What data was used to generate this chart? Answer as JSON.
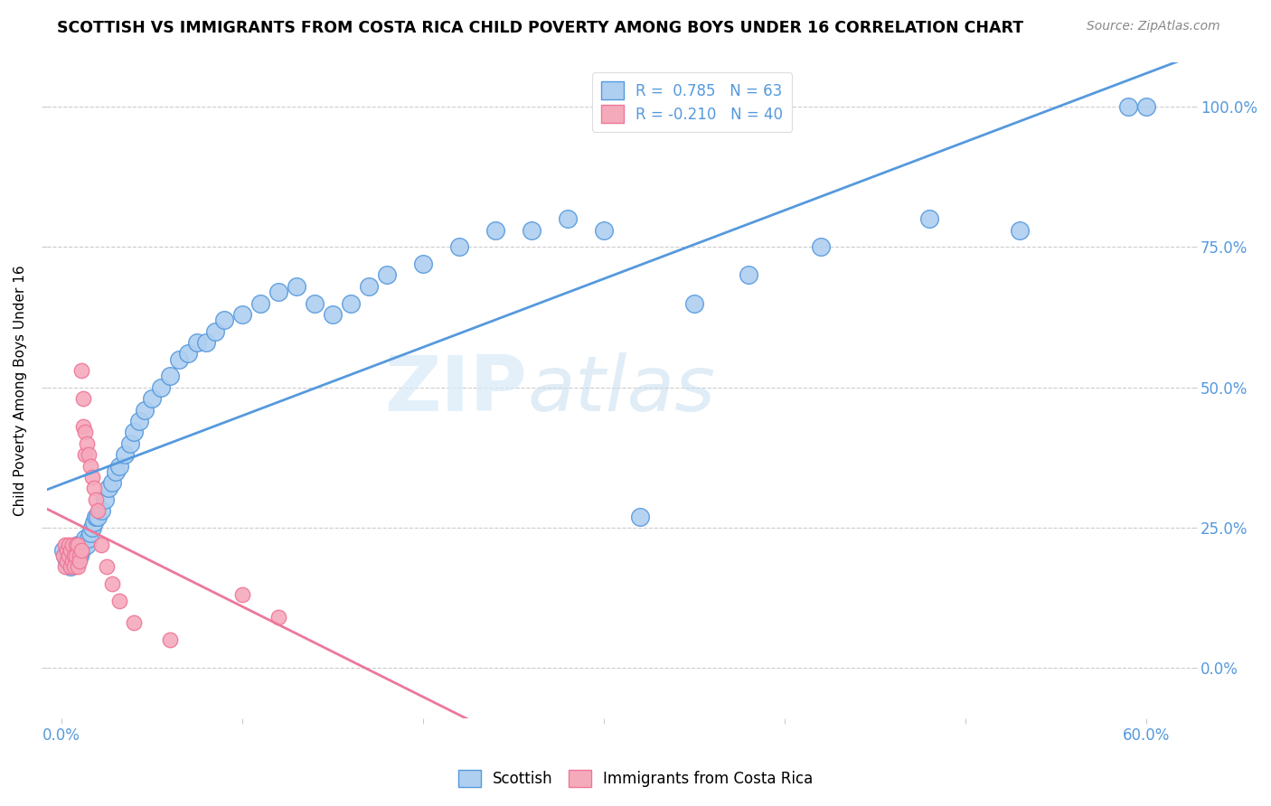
{
  "title": "SCOTTISH VS IMMIGRANTS FROM COSTA RICA CHILD POVERTY AMONG BOYS UNDER 16 CORRELATION CHART",
  "source": "Source: ZipAtlas.com",
  "ylabel": "Child Poverty Among Boys Under 16",
  "legend_r1": "R =  0.785   N = 63",
  "legend_r2": "R = -0.210   N = 40",
  "color_scottish": "#aecff0",
  "color_costarica": "#f5aabc",
  "line_color_scottish": "#5599dd",
  "line_color_costarica": "#ee7799",
  "watermark_zip": "ZIP",
  "watermark_atlas": "atlas",
  "xlim_min": -0.008,
  "xlim_max": 0.625,
  "ylim_min": -0.09,
  "ylim_max": 1.08,
  "xtick_vals": [
    0.0,
    0.1,
    0.2,
    0.3,
    0.4,
    0.5,
    0.6
  ],
  "xtick_labels": [
    "0.0%",
    "",
    "",
    "",
    "",
    "",
    "60.0%"
  ],
  "ytick_vals": [
    0.0,
    0.25,
    0.5,
    0.75,
    1.0
  ],
  "ytick_labels": [
    "0.0%",
    "25.0%",
    "50.0%",
    "75.0%",
    "100.0%"
  ],
  "scottish_x": [
    0.001,
    0.002,
    0.003,
    0.004,
    0.005,
    0.006,
    0.007,
    0.008,
    0.009,
    0.01,
    0.011,
    0.012,
    0.013,
    0.014,
    0.015,
    0.016,
    0.017,
    0.018,
    0.019,
    0.02,
    0.022,
    0.024,
    0.026,
    0.028,
    0.03,
    0.032,
    0.035,
    0.038,
    0.04,
    0.043,
    0.046,
    0.05,
    0.055,
    0.06,
    0.065,
    0.07,
    0.075,
    0.08,
    0.085,
    0.09,
    0.1,
    0.11,
    0.12,
    0.13,
    0.14,
    0.15,
    0.16,
    0.17,
    0.18,
    0.2,
    0.22,
    0.24,
    0.26,
    0.28,
    0.3,
    0.32,
    0.35,
    0.38,
    0.42,
    0.48,
    0.53,
    0.59,
    0.6
  ],
  "scottish_y": [
    0.21,
    0.2,
    0.19,
    0.2,
    0.18,
    0.2,
    0.21,
    0.19,
    0.22,
    0.2,
    0.21,
    0.22,
    0.23,
    0.22,
    0.23,
    0.24,
    0.25,
    0.26,
    0.27,
    0.27,
    0.28,
    0.3,
    0.32,
    0.33,
    0.35,
    0.36,
    0.38,
    0.4,
    0.42,
    0.44,
    0.46,
    0.48,
    0.5,
    0.52,
    0.55,
    0.56,
    0.58,
    0.58,
    0.6,
    0.62,
    0.63,
    0.65,
    0.67,
    0.68,
    0.65,
    0.63,
    0.65,
    0.68,
    0.7,
    0.72,
    0.75,
    0.78,
    0.78,
    0.8,
    0.78,
    0.27,
    0.65,
    0.7,
    0.75,
    0.8,
    0.78,
    1.0,
    1.0
  ],
  "costarica_x": [
    0.001,
    0.002,
    0.002,
    0.003,
    0.003,
    0.004,
    0.004,
    0.005,
    0.005,
    0.006,
    0.006,
    0.007,
    0.007,
    0.008,
    0.008,
    0.009,
    0.009,
    0.01,
    0.01,
    0.011,
    0.011,
    0.012,
    0.012,
    0.013,
    0.013,
    0.014,
    0.015,
    0.016,
    0.017,
    0.018,
    0.019,
    0.02,
    0.022,
    0.025,
    0.028,
    0.032,
    0.04,
    0.06,
    0.1,
    0.12
  ],
  "costarica_y": [
    0.2,
    0.22,
    0.18,
    0.21,
    0.19,
    0.2,
    0.22,
    0.18,
    0.21,
    0.19,
    0.22,
    0.2,
    0.18,
    0.22,
    0.2,
    0.18,
    0.22,
    0.2,
    0.19,
    0.21,
    0.53,
    0.48,
    0.43,
    0.42,
    0.38,
    0.4,
    0.38,
    0.36,
    0.34,
    0.32,
    0.3,
    0.28,
    0.22,
    0.18,
    0.15,
    0.12,
    0.08,
    0.05,
    0.13,
    0.09
  ],
  "sc_line_x0": -0.008,
  "sc_line_x1": 0.625,
  "cr_line_x0": -0.008,
  "cr_line_x1": 0.42
}
